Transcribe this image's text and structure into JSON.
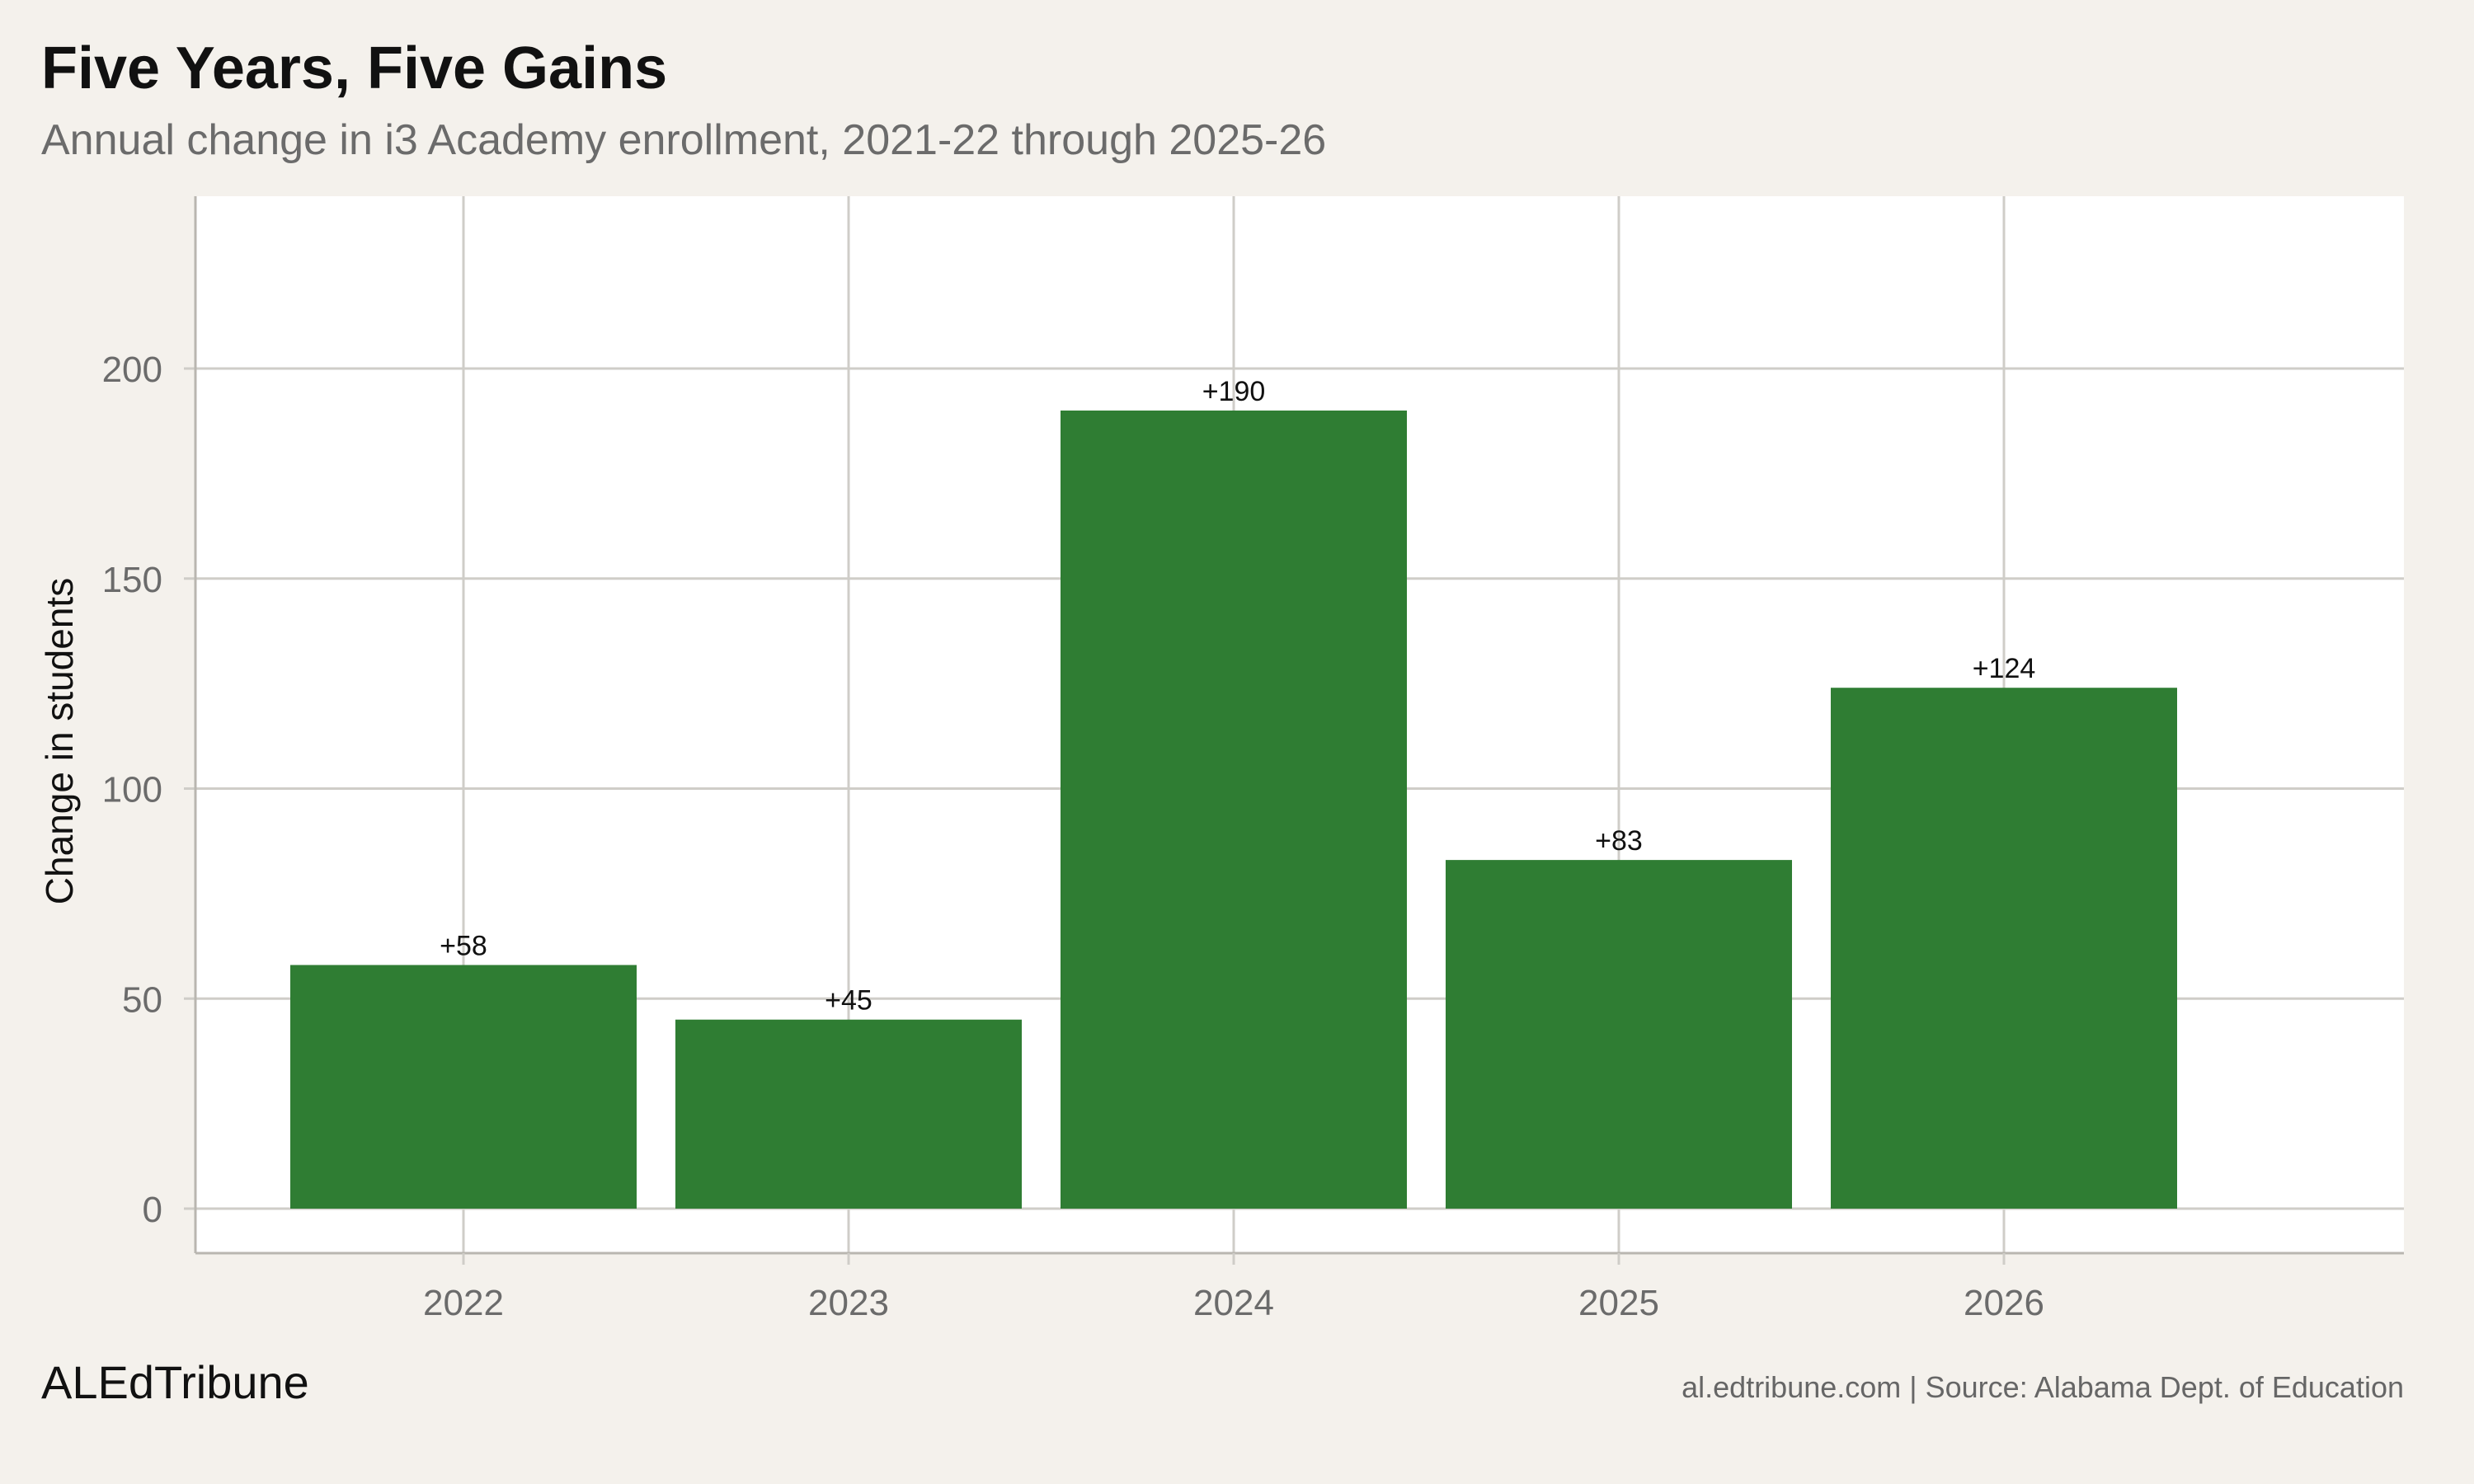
{
  "header": {
    "title": "Five Years, Five Gains",
    "subtitle": "Annual change in i3 Academy enrollment, 2021-22 through 2025-26"
  },
  "footer": {
    "brand": "ALEdTribune",
    "source": "al.edtribune.com | Source: Alabama Dept. of Education"
  },
  "colors": {
    "bar": "#2f7d33",
    "background": "#f4f1ec",
    "plot_background": "#ffffff",
    "grid": "#cfcdc8"
  },
  "chart_data": {
    "type": "bar",
    "categories": [
      "2022",
      "2023",
      "2024",
      "2025",
      "2026"
    ],
    "values": [
      58,
      45,
      190,
      83,
      124
    ],
    "data_labels": [
      "+58",
      "+45",
      "+190",
      "+83",
      "+124"
    ],
    "xlabel": "",
    "ylabel": "Change in students",
    "ylim": [
      0,
      230
    ],
    "yticks": [
      0,
      50,
      100,
      150,
      200
    ],
    "grid": true,
    "legend": "none"
  }
}
